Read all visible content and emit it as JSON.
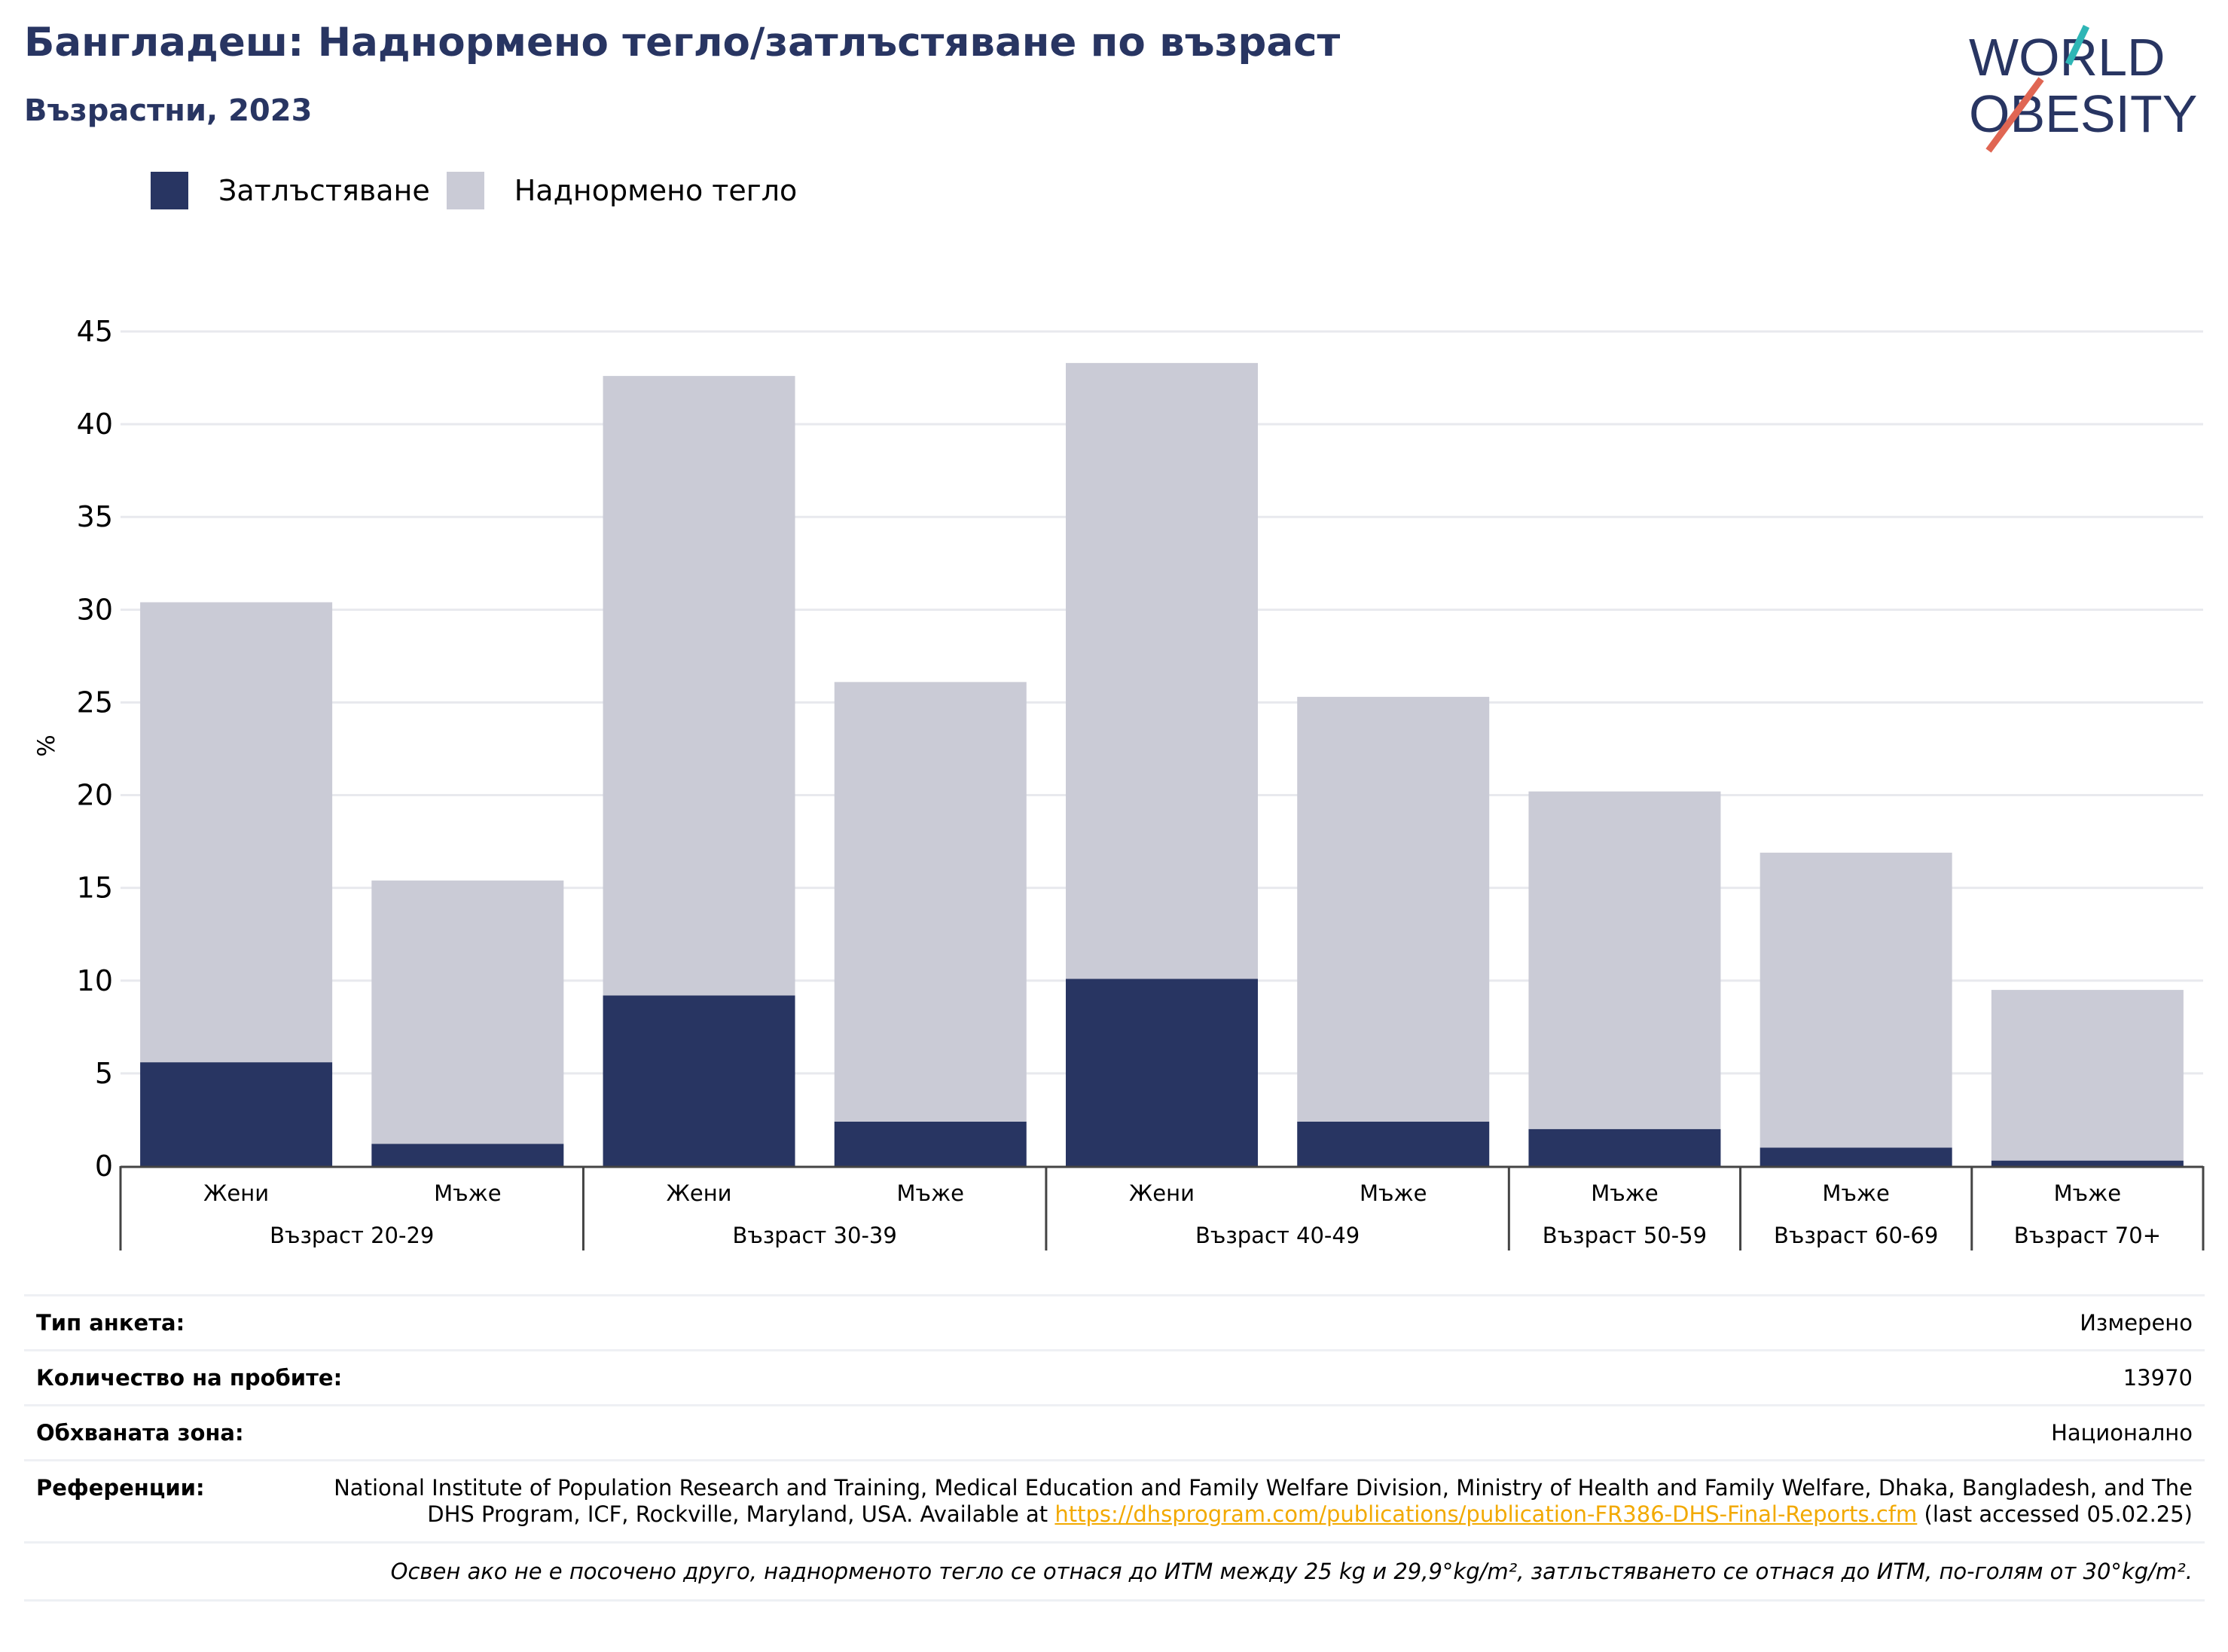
{
  "header": {
    "title": "Бангладеш: Наднормено тегло/затлъстяване по възраст",
    "subtitle": "Възрастни, 2023"
  },
  "logo": {
    "line1": "WORLD",
    "line2": "OBESITY"
  },
  "legend": [
    {
      "label": "Затлъстяване",
      "color": "#283562"
    },
    {
      "label": "Наднормено тегло",
      "color": "#cacbd6"
    }
  ],
  "chart_data": {
    "type": "bar",
    "stacked": true,
    "ylabel": "%",
    "ylim": [
      0,
      45
    ],
    "yticks": [
      0,
      5,
      10,
      15,
      20,
      25,
      30,
      35,
      40,
      45
    ],
    "grid": true,
    "categories": [
      {
        "sex": "Жени",
        "group": "Възраст 20-29"
      },
      {
        "sex": "Мъже",
        "group": "Възраст 20-29"
      },
      {
        "sex": "Жени",
        "group": "Възраст 30-39"
      },
      {
        "sex": "Мъже",
        "group": "Възраст 30-39"
      },
      {
        "sex": "Жени",
        "group": "Възраст 40-49"
      },
      {
        "sex": "Мъже",
        "group": "Възраст 40-49"
      },
      {
        "sex": "Мъже",
        "group": "Възраст 50-59"
      },
      {
        "sex": "Мъже",
        "group": "Възраст 60-69"
      },
      {
        "sex": "Мъже",
        "group": "Възраст 70+"
      }
    ],
    "groups": [
      "Възраст 20-29",
      "Възраст 30-39",
      "Възраст 40-49",
      "Възраст 50-59",
      "Възраст 60-69",
      "Възраст 70+"
    ],
    "series": [
      {
        "name": "Затлъстяване",
        "color": "#283562",
        "values": [
          5.6,
          1.2,
          9.2,
          2.4,
          10.1,
          2.4,
          2.0,
          1.0,
          0.3
        ]
      },
      {
        "name": "Наднормено тегло",
        "color": "#cacbd6",
        "values": [
          24.8,
          14.2,
          33.4,
          23.7,
          33.2,
          22.9,
          18.2,
          15.9,
          9.2
        ]
      }
    ]
  },
  "info": {
    "survey_type_label": "Тип анкета:",
    "survey_type_value": "Измерено",
    "sample_size_label": "Количество на пробите:",
    "sample_size_value": "13970",
    "area_label": "Обхваната зона:",
    "area_value": "Национално",
    "references_label": "Референции:",
    "references_text": "National Institute of Population Research and Training, Medical Education and Family Welfare Division, Ministry of Health and Family Welfare, Dhaka, Bangladesh, and The DHS Program, ICF, Rockville, Maryland, USA. Available at ",
    "references_link": "https://dhsprogram.com/publications/publication-FR386-DHS-Final-Reports.cfm",
    "references_suffix": " (last accessed 05.02.25)",
    "footnote": "Освен ако не е посочено друго, наднорменото тегло се отнася до ИТМ между 25 kg и 29,9°kg/m², затлъстяването се отнася до ИТМ, по-голям от 30°kg/m²."
  }
}
